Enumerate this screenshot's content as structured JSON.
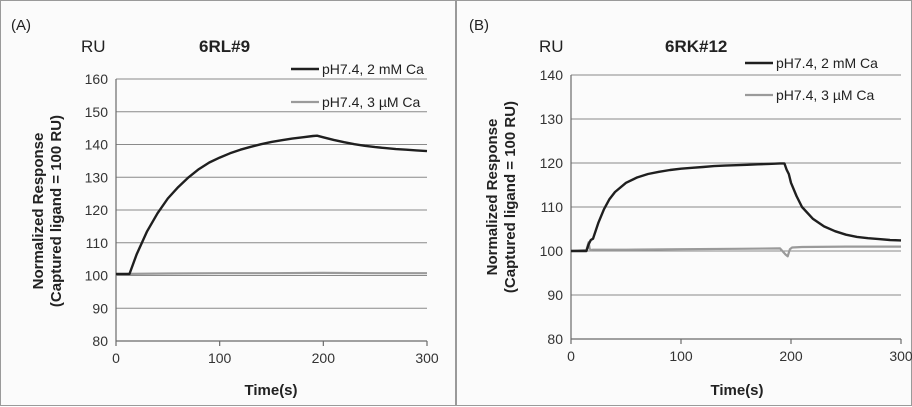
{
  "chart_data": [
    {
      "type": "line",
      "panel_label": "(A)",
      "unit_label": "RU",
      "title": "6RL#9",
      "xlabel": "Time(s)",
      "ylabel_line1": "Normalized Response",
      "ylabel_line2": "(Captured ligand = 100 RU)",
      "xlim": [
        0,
        300
      ],
      "ylim": [
        80,
        160
      ],
      "xticks": [
        0,
        100,
        200,
        300
      ],
      "yticks": [
        80,
        90,
        100,
        110,
        120,
        130,
        140,
        150,
        160
      ],
      "grid": true,
      "legend_position": "top-right",
      "series": [
        {
          "name": "pH7.4, 2 mM Ca",
          "color": "#1f1f1f",
          "x": [
            0,
            10,
            13,
            20,
            30,
            40,
            50,
            60,
            70,
            80,
            90,
            100,
            110,
            120,
            130,
            140,
            150,
            160,
            170,
            180,
            190,
            194,
            200,
            210,
            220,
            230,
            240,
            250,
            260,
            270,
            280,
            290,
            300
          ],
          "y": [
            100.5,
            100.5,
            100.5,
            106.5,
            113.5,
            119,
            123.5,
            127,
            130,
            132.5,
            134.5,
            136,
            137.3,
            138.4,
            139.3,
            140.1,
            140.8,
            141.3,
            141.8,
            142.2,
            142.6,
            142.7,
            142.2,
            141.4,
            140.7,
            140.1,
            139.6,
            139.2,
            138.9,
            138.6,
            138.4,
            138.2,
            138
          ]
        },
        {
          "name": "pH7.4, 3 µM Ca",
          "color": "#9a9a9a",
          "x": [
            0,
            13,
            50,
            100,
            150,
            200,
            250,
            300
          ],
          "y": [
            100.4,
            100.5,
            100.6,
            100.7,
            100.7,
            100.8,
            100.7,
            100.7
          ]
        }
      ]
    },
    {
      "type": "line",
      "panel_label": "(B)",
      "unit_label": "RU",
      "title": "6RK#12",
      "xlabel": "Time(s)",
      "ylabel_line1": "Normalized Response",
      "ylabel_line2": "(Captured ligand = 100 RU)",
      "xlim": [
        0,
        300
      ],
      "ylim": [
        80,
        140
      ],
      "xticks": [
        0,
        100,
        200,
        300
      ],
      "yticks": [
        80,
        90,
        100,
        110,
        120,
        130,
        140
      ],
      "grid": true,
      "legend_position": "top-right",
      "series": [
        {
          "name": "pH7.4, 2 mM Ca",
          "color": "#1f1f1f",
          "x": [
            0,
            14,
            16,
            18,
            20,
            25,
            30,
            35,
            40,
            50,
            60,
            70,
            80,
            90,
            100,
            110,
            120,
            130,
            140,
            150,
            160,
            170,
            180,
            190,
            194,
            196,
            198,
            200,
            205,
            210,
            220,
            230,
            240,
            250,
            260,
            270,
            280,
            290,
            300
          ],
          "y": [
            100,
            100,
            101.5,
            102.5,
            102.8,
            106.5,
            109.5,
            111.8,
            113.4,
            115.5,
            116.7,
            117.5,
            118,
            118.4,
            118.7,
            118.9,
            119.1,
            119.3,
            119.4,
            119.5,
            119.6,
            119.7,
            119.8,
            119.9,
            119.9,
            118.5,
            117.5,
            115.5,
            112.5,
            110,
            107.3,
            105.6,
            104.5,
            103.7,
            103.2,
            102.9,
            102.7,
            102.5,
            102.4
          ]
        },
        {
          "name": "pH7.4, 3 µM Ca",
          "color": "#9a9a9a",
          "x": [
            0,
            14,
            16,
            17,
            18,
            20,
            50,
            100,
            150,
            190,
            195,
            197,
            199,
            201,
            210,
            250,
            300
          ],
          "y": [
            100,
            100.2,
            102,
            100.5,
            100.2,
            100.3,
            100.3,
            100.4,
            100.5,
            100.6,
            99.2,
            98.8,
            100.4,
            100.8,
            100.9,
            101,
            101
          ]
        }
      ]
    }
  ]
}
